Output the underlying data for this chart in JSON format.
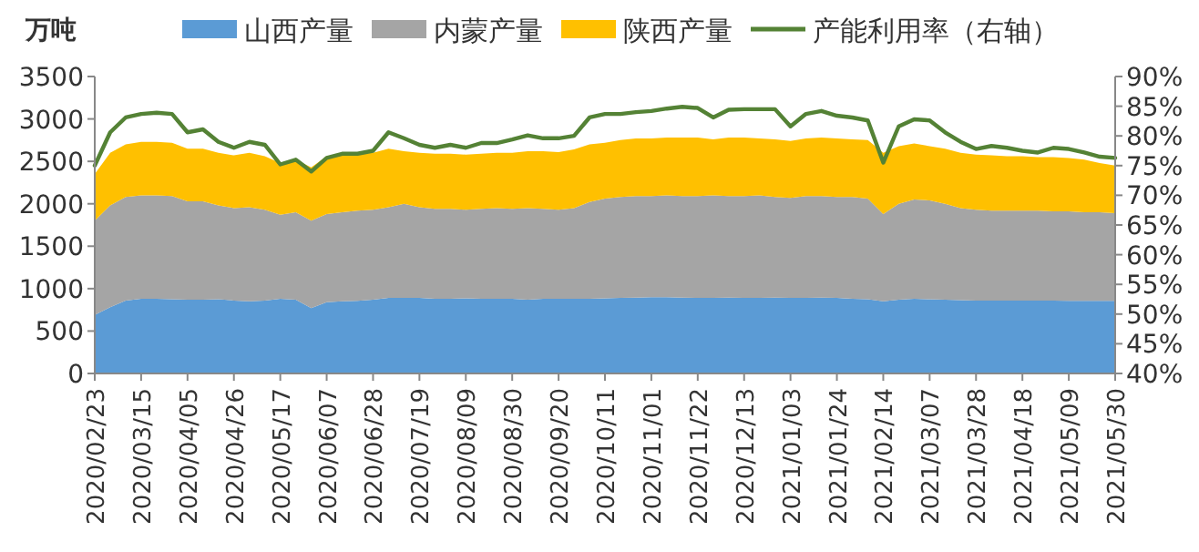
{
  "chart_data": {
    "type": "area",
    "stacked": true,
    "ylabel": "万吨",
    "legend": "top",
    "grid": false,
    "categories": [
      "2020/02/23",
      null,
      null,
      "2020/03/15",
      null,
      null,
      "2020/04/05",
      null,
      null,
      "2020/04/26",
      null,
      null,
      "2020/05/17",
      null,
      null,
      "2020/06/07",
      null,
      null,
      "2020/06/28",
      null,
      null,
      "2020/07/19",
      null,
      null,
      "2020/08/09",
      null,
      null,
      "2020/08/30",
      null,
      null,
      "2020/09/20",
      null,
      null,
      "2020/10/11",
      null,
      null,
      "2020/11/01",
      null,
      null,
      "2020/11/22",
      null,
      null,
      "2020/12/13",
      null,
      null,
      "2021/01/03",
      null,
      null,
      "2021/01/24",
      null,
      null,
      "2021/02/14",
      null,
      null,
      "2021/03/07",
      null,
      null,
      "2021/03/28",
      null,
      null,
      "2021/04/18",
      null,
      null,
      "2021/05/09",
      null,
      null,
      "2021/05/30"
    ],
    "ylim": [
      0,
      3500
    ],
    "yticks": [
      0,
      500,
      1000,
      1500,
      2000,
      2500,
      3000,
      3500
    ],
    "y2lim": [
      40,
      90
    ],
    "y2ticks": [
      {
        "value": 40,
        "label": "40%"
      },
      {
        "value": 45,
        "label": "45%"
      },
      {
        "value": 50,
        "label": "50%"
      },
      {
        "value": 55,
        "label": "55%"
      },
      {
        "value": 60,
        "label": "60%"
      },
      {
        "value": 65,
        "label": "65%"
      },
      {
        "value": 70,
        "label": "70%"
      },
      {
        "value": 75,
        "label": "75%"
      },
      {
        "value": 80,
        "label": "80%"
      },
      {
        "value": 85,
        "label": "85%"
      },
      {
        "value": 90,
        "label": "90%"
      }
    ],
    "series": [
      {
        "name": "山西产量",
        "color": "#5b9bd5",
        "values": [
          690,
          780,
          860,
          880,
          880,
          875,
          870,
          870,
          875,
          860,
          850,
          860,
          880,
          870,
          770,
          840,
          850,
          855,
          870,
          890,
          890,
          890,
          880,
          880,
          885,
          880,
          880,
          880,
          870,
          880,
          880,
          880,
          880,
          885,
          890,
          895,
          900,
          900,
          895,
          890,
          890,
          895,
          890,
          890,
          895,
          890,
          890,
          895,
          890,
          880,
          875,
          850,
          870,
          880,
          875,
          870,
          865,
          860,
          860,
          860,
          860,
          860,
          860,
          855,
          855,
          855,
          855
        ]
      },
      {
        "name": "内蒙产量",
        "color": "#a5a5a5",
        "values": [
          1110,
          1200,
          1220,
          1220,
          1220,
          1215,
          1160,
          1160,
          1105,
          1090,
          1110,
          1070,
          990,
          1030,
          1030,
          1040,
          1050,
          1065,
          1060,
          1070,
          1110,
          1070,
          1060,
          1060,
          1045,
          1060,
          1070,
          1060,
          1080,
          1060,
          1050,
          1070,
          1140,
          1175,
          1190,
          1195,
          1190,
          1200,
          1195,
          1200,
          1210,
          1195,
          1200,
          1210,
          1185,
          1180,
          1200,
          1195,
          1190,
          1200,
          1185,
          1030,
          1130,
          1170,
          1165,
          1130,
          1085,
          1070,
          1060,
          1060,
          1060,
          1060,
          1050,
          1055,
          1045,
          1045,
          1035
        ]
      },
      {
        "name": "陕西产量",
        "color": "#ffc000",
        "values": [
          550,
          620,
          620,
          630,
          630,
          630,
          620,
          620,
          620,
          620,
          640,
          630,
          610,
          620,
          630,
          680,
          680,
          670,
          670,
          690,
          620,
          640,
          650,
          650,
          650,
          650,
          650,
          660,
          670,
          680,
          680,
          690,
          680,
          660,
          670,
          680,
          680,
          680,
          690,
          690,
          660,
          690,
          690,
          670,
          680,
          670,
          680,
          690,
          690,
          680,
          690,
          720,
          680,
          660,
          640,
          650,
          650,
          650,
          650,
          640,
          640,
          630,
          640,
          630,
          620,
          580,
          560
        ]
      },
      {
        "name": "产能利用率（右轴）",
        "type": "line",
        "axis": "y2",
        "color": "#548235",
        "values": [
          75.0,
          80.6,
          83.1,
          83.7,
          83.9,
          83.7,
          80.6,
          81.1,
          79.0,
          78.0,
          79.0,
          78.5,
          75.2,
          76.0,
          74.0,
          76.3,
          77.0,
          77.0,
          77.5,
          80.6,
          79.6,
          78.5,
          78.0,
          78.5,
          78.0,
          78.8,
          78.8,
          79.4,
          80.1,
          79.6,
          79.6,
          80.0,
          83.1,
          83.7,
          83.7,
          84.0,
          84.2,
          84.6,
          84.9,
          84.7,
          83.1,
          84.4,
          84.5,
          84.5,
          84.5,
          81.6,
          83.7,
          84.2,
          83.4,
          83.1,
          82.6,
          75.5,
          81.6,
          82.8,
          82.6,
          80.6,
          79.0,
          77.8,
          78.3,
          78.0,
          77.5,
          77.2,
          78.0,
          77.8,
          77.2,
          76.5,
          76.3
        ]
      }
    ]
  }
}
